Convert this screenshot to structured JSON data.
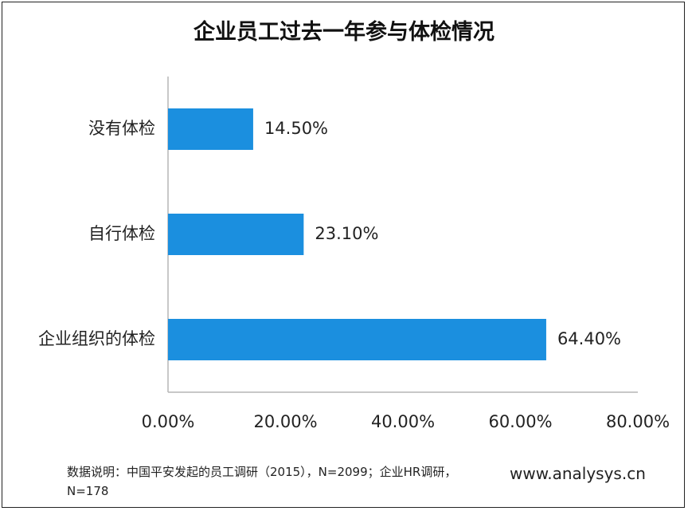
{
  "chart_data": {
    "type": "bar",
    "orientation": "horizontal",
    "title": "企业员工过去一年参与体检情况",
    "categories": [
      "没有体检",
      "自行体检",
      "企业组织的体检"
    ],
    "values": [
      14.5,
      23.1,
      64.4
    ],
    "value_labels": [
      "14.50%",
      "23.10%",
      "64.40%"
    ],
    "xlim": [
      0,
      80
    ],
    "xticks": [
      0,
      20,
      40,
      60,
      80
    ],
    "xtick_labels": [
      "0.00%",
      "20.00%",
      "40.00%",
      "60.00%",
      "80.00%"
    ],
    "bar_color": "#1b8fdf",
    "grid": false,
    "legend": "none"
  },
  "footer": {
    "note": "数据说明：中国平安发起的员工调研（2015），N=2099；企业HR调研，N=178",
    "brand": "www.analysys.cn"
  }
}
